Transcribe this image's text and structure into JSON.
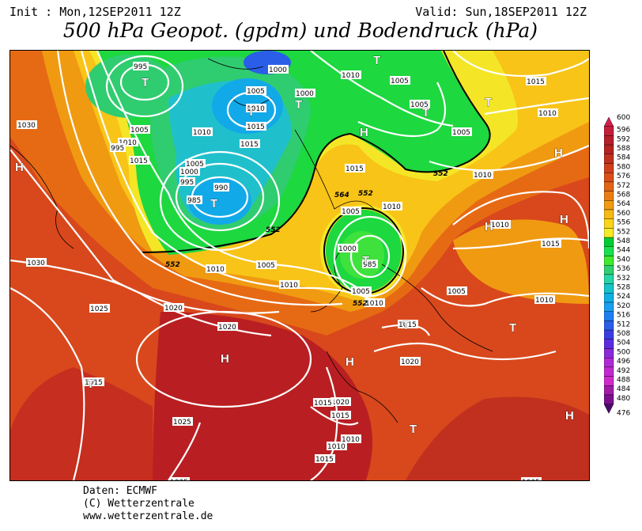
{
  "header": {
    "init": "Init : Mon,12SEP2011 12Z",
    "valid": "Valid: Sun,18SEP2011 12Z",
    "title": "500 hPa Geopot. (gpdm) und Bodendruck (hPa)"
  },
  "legend": {
    "values": [
      "600",
      "596",
      "592",
      "588",
      "584",
      "580",
      "576",
      "572",
      "568",
      "564",
      "560",
      "556",
      "552",
      "548",
      "544",
      "540",
      "536",
      "532",
      "528",
      "524",
      "520",
      "516",
      "512",
      "508",
      "504",
      "500",
      "496",
      "492",
      "488",
      "484",
      "480",
      "476"
    ],
    "colors": [
      "#d21f4d",
      "#c41e3a",
      "#b51e2a",
      "#b52222",
      "#c0301e",
      "#cf3f1c",
      "#da4f18",
      "#e26414",
      "#ea7d12",
      "#f19a12",
      "#f7b915",
      "#fbd41a",
      "#f6ea25",
      "#00cc33",
      "#19e04d",
      "#3fea2e",
      "#30d070",
      "#26d6a6",
      "#16c3c8",
      "#10b0e6",
      "#1a9ef0",
      "#1f7ef0",
      "#2a5ee8",
      "#3a3ee0",
      "#5a2ee0",
      "#8a2ad8",
      "#b02ad6",
      "#c22ad0",
      "#d02acc",
      "#a01ca8",
      "#7a1090",
      "#4b0a6a"
    ]
  },
  "map_labels": {
    "pressure_centers": [
      {
        "id": "t1",
        "label": "T"
      },
      {
        "id": "t2",
        "label": "T"
      },
      {
        "id": "t3",
        "label": "T"
      },
      {
        "id": "t4",
        "label": "T"
      },
      {
        "id": "t5",
        "label": "T"
      },
      {
        "id": "t6",
        "label": "T"
      },
      {
        "id": "t7",
        "label": "T"
      },
      {
        "id": "t8",
        "label": "T"
      },
      {
        "id": "t9",
        "label": "T"
      },
      {
        "id": "t10",
        "label": "T"
      },
      {
        "id": "t11",
        "label": "T"
      },
      {
        "id": "t12",
        "label": "T"
      },
      {
        "id": "h1",
        "label": "H"
      },
      {
        "id": "h2",
        "label": "H"
      },
      {
        "id": "h3",
        "label": "H"
      },
      {
        "id": "h4",
        "label": "H"
      },
      {
        "id": "h5",
        "label": "H"
      },
      {
        "id": "h6",
        "label": "H"
      },
      {
        "id": "h7",
        "label": "H"
      },
      {
        "id": "h8",
        "label": "H"
      }
    ],
    "isobar_labels": [
      "995",
      "1000",
      "1005",
      "1010",
      "1015",
      "1010",
      "1005",
      "1015",
      "1010",
      "1005",
      "1030",
      "1010",
      "1015",
      "1005",
      "1010",
      "1000",
      "995",
      "985",
      "990",
      "1000",
      "995",
      "1005",
      "1010",
      "1005",
      "1015",
      "1010",
      "1015",
      "1005",
      "1010",
      "1005",
      "1010",
      "1000",
      "985",
      "1005",
      "1010",
      "1005",
      "1010",
      "1015",
      "1030",
      "1025",
      "1020",
      "1020",
      "1025",
      "1015",
      "1025",
      "1020",
      "1015",
      "1015",
      "1020",
      "1015",
      "1010",
      "1005",
      "1015",
      "1010",
      "1010"
    ],
    "contour_labels": [
      "552",
      "552",
      "552",
      "564",
      "552",
      "552"
    ]
  },
  "footer": {
    "line1": "Daten: ECMWF",
    "line2": "(C) Wetterzentrale",
    "line3": "www.wetterzentrale.de"
  }
}
